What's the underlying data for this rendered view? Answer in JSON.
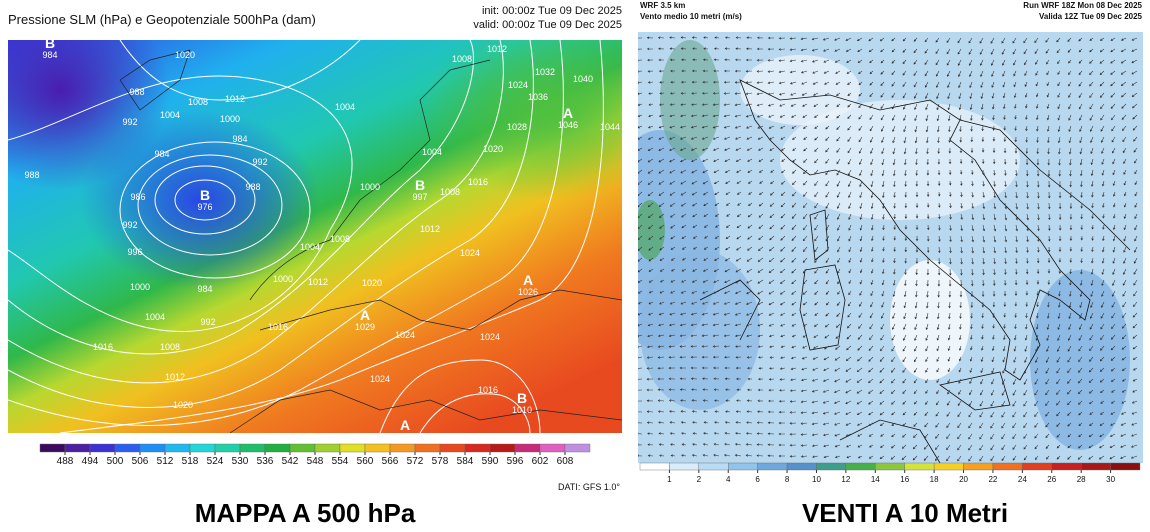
{
  "left_panel": {
    "title": "Pressione SLM (hPa) e Geopotenziale 500hPa (dam)",
    "init": "init: 00:00z Tue 09 Dec 2025",
    "valid": "valid: 00:00z Tue 09 Dec 2025",
    "isobar_labels": [
      1020,
      988,
      1008,
      1012,
      1004,
      992,
      1000,
      984,
      992,
      984,
      988,
      988,
      986,
      992,
      996,
      1000,
      1004,
      1008,
      1012,
      1020,
      1016,
      992,
      984,
      1000,
      1004,
      1008,
      1012,
      1016,
      1020,
      1024,
      1024,
      1016,
      1024,
      1024,
      1012,
      1004,
      1008,
      1000,
      1004,
      1008,
      1016,
      1020,
      1024,
      1028,
      1032,
      1036,
      1040,
      1044,
      1012
    ],
    "pressure_centers": [
      {
        "letter": "B",
        "value": 984
      },
      {
        "letter": "B",
        "value": 976
      },
      {
        "letter": "B",
        "value": 997
      },
      {
        "letter": "A",
        "value": 1046
      },
      {
        "letter": "A",
        "value": 1029
      },
      {
        "letter": "A",
        "value": 1026
      },
      {
        "letter": "B",
        "value": 1010
      },
      {
        "letter": "A"
      }
    ],
    "colorbar": {
      "ticks": [
        488,
        494,
        500,
        506,
        512,
        518,
        524,
        530,
        536,
        542,
        548,
        554,
        560,
        566,
        572,
        578,
        584,
        590,
        596,
        602,
        608
      ],
      "colors": [
        "#3b0a5e",
        "#4b1fa0",
        "#3c2fd4",
        "#2a5ef0",
        "#1f8ef5",
        "#20b8f0",
        "#21d6d8",
        "#20d0a8",
        "#1fbf6a",
        "#20b040",
        "#60c030",
        "#a0d030",
        "#e0e020",
        "#f5c020",
        "#f59a20",
        "#f07020",
        "#e84820",
        "#d82820",
        "#b81818",
        "#c82a7a",
        "#e060c0",
        "#c090e0"
      ]
    },
    "source": "DATI: GFS 1.0°",
    "caption": "MAPPA A 500 hPa"
  },
  "right_panel": {
    "model": "WRF 3.5 km",
    "subtitle": "Vento medio 10 metri (m/s)",
    "run": "Run WRF 18Z Mon 08 Dec 2025",
    "valid": "Valida 12Z Tue 09 Dec 2025",
    "colorbar": {
      "ticks": [
        1,
        2,
        4,
        6,
        8,
        10,
        12,
        14,
        16,
        18,
        20,
        22,
        24,
        26,
        28,
        30
      ],
      "colors": [
        "#ffffff",
        "#d8ecfa",
        "#b8dcf4",
        "#90c4ea",
        "#6fa8dc",
        "#5591cc",
        "#3f9e8a",
        "#47b04a",
        "#8cc63e",
        "#d4e23a",
        "#f5d020",
        "#f5a020",
        "#ef7020",
        "#e04020",
        "#c82020",
        "#a81818",
        "#8a1010"
      ]
    },
    "caption": "VENTI A 10 Metri"
  }
}
